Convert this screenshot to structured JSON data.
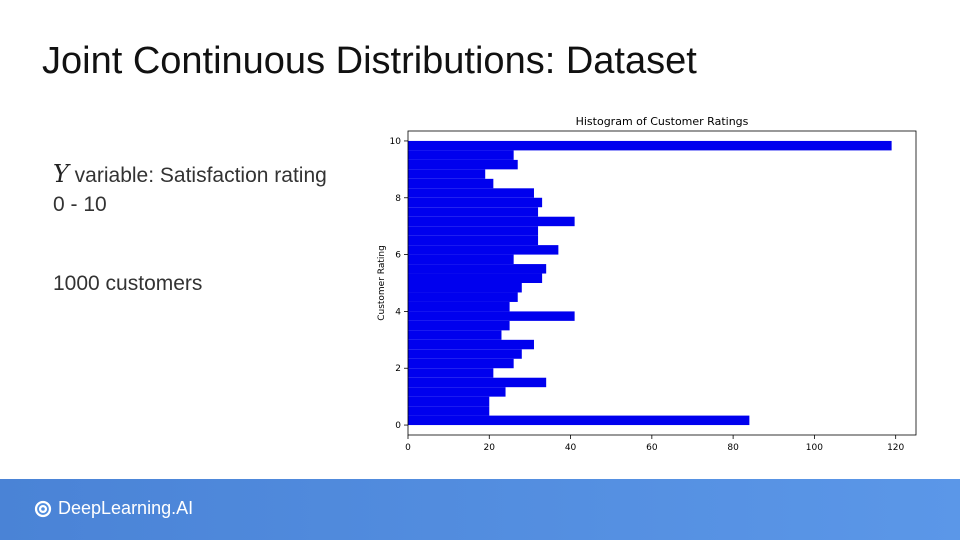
{
  "slide": {
    "title": "Joint Continuous Distributions: Dataset",
    "y_symbol": "Y",
    "y_desc": " variable: Satisfaction rating",
    "y_range": "0 - 10",
    "customers": "1000 customers"
  },
  "footer": {
    "brand": "DeepLearning.AI",
    "brand_icon": "deeplearning-logo-icon",
    "color": "#4f8ddf"
  },
  "chart_data": {
    "type": "bar",
    "orientation": "horizontal",
    "title": "Histogram of Customer Ratings",
    "xlabel": "",
    "ylabel": "Customer Rating",
    "xlim": [
      0,
      125
    ],
    "ylim": [
      -0.35,
      10.35
    ],
    "xticks": [
      0,
      20,
      40,
      60,
      80,
      100,
      120
    ],
    "yticks": [
      0,
      2,
      4,
      6,
      8,
      10
    ],
    "bar_color": "#0000ee",
    "bin_height": 0.333,
    "bins": [
      {
        "y": 0.0,
        "count": 84
      },
      {
        "y": 0.333,
        "count": 20
      },
      {
        "y": 0.667,
        "count": 20
      },
      {
        "y": 1.0,
        "count": 24
      },
      {
        "y": 1.333,
        "count": 34
      },
      {
        "y": 1.667,
        "count": 21
      },
      {
        "y": 2.0,
        "count": 26
      },
      {
        "y": 2.333,
        "count": 28
      },
      {
        "y": 2.667,
        "count": 31
      },
      {
        "y": 3.0,
        "count": 23
      },
      {
        "y": 3.333,
        "count": 25
      },
      {
        "y": 3.667,
        "count": 41
      },
      {
        "y": 4.0,
        "count": 25
      },
      {
        "y": 4.333,
        "count": 27
      },
      {
        "y": 4.667,
        "count": 28
      },
      {
        "y": 5.0,
        "count": 33
      },
      {
        "y": 5.333,
        "count": 34
      },
      {
        "y": 5.667,
        "count": 26
      },
      {
        "y": 6.0,
        "count": 37
      },
      {
        "y": 6.333,
        "count": 32
      },
      {
        "y": 6.667,
        "count": 32
      },
      {
        "y": 7.0,
        "count": 41
      },
      {
        "y": 7.333,
        "count": 32
      },
      {
        "y": 7.667,
        "count": 33
      },
      {
        "y": 8.0,
        "count": 31
      },
      {
        "y": 8.333,
        "count": 21
      },
      {
        "y": 8.667,
        "count": 19
      },
      {
        "y": 9.0,
        "count": 27
      },
      {
        "y": 9.333,
        "count": 26
      },
      {
        "y": 9.667,
        "count": 119
      }
    ]
  }
}
